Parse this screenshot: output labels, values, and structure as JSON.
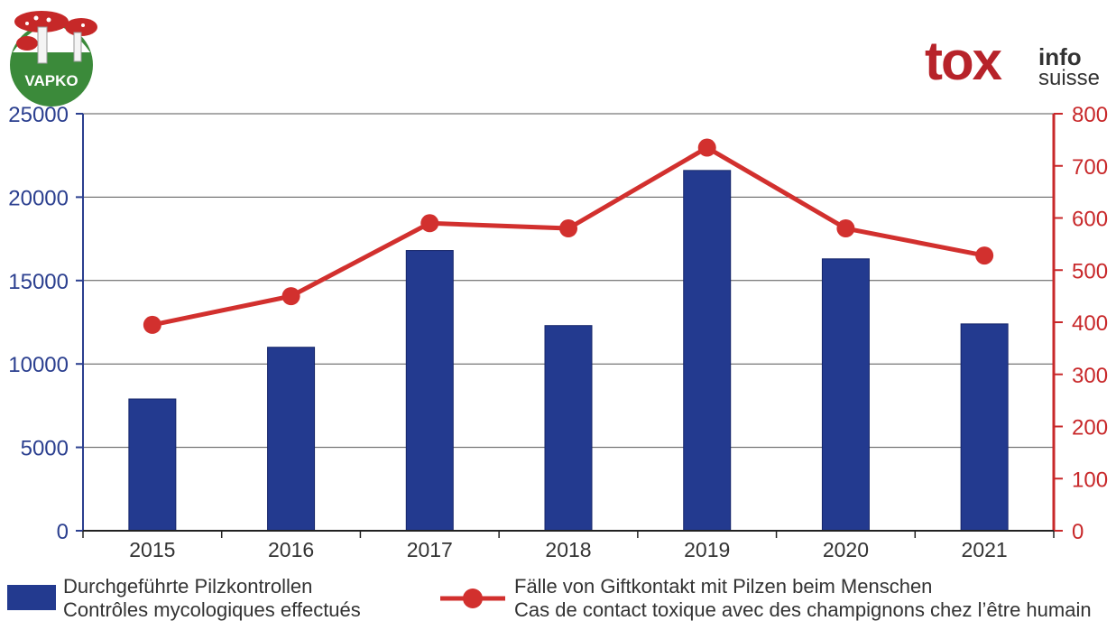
{
  "logos": {
    "left_text": "VAPKO",
    "right_big": "tox",
    "right_small_1": "info",
    "right_small_2": "suisse"
  },
  "colors": {
    "bar": "#233a8f",
    "line": "#d2302e",
    "left_axis": "#2b3f8f",
    "right_axis": "#c8282a"
  },
  "chart_data": {
    "type": "bar",
    "categories": [
      "2015",
      "2016",
      "2017",
      "2018",
      "2019",
      "2020",
      "2021"
    ],
    "series": [
      {
        "name": "Durchgeführte Pilzkontrollen",
        "name_fr": "Contrôles mycologiques effectués",
        "type": "bar",
        "axis": "left",
        "values": [
          7900,
          11000,
          16800,
          12300,
          21600,
          16300,
          12400
        ]
      },
      {
        "name": "Fälle von Giftkontakt mit Pilzen beim Menschen",
        "name_fr": "Cas de contact toxique avec des champignons chez l’être humain",
        "type": "line",
        "axis": "right",
        "values": [
          395,
          450,
          590,
          580,
          735,
          580,
          528
        ]
      }
    ],
    "y_left": {
      "ylim": [
        0,
        25000
      ],
      "ticks": [
        "0",
        "5000",
        "10000",
        "15000",
        "20000",
        "25000"
      ]
    },
    "y_right": {
      "ylim": [
        0,
        800
      ],
      "ticks": [
        "0",
        "100",
        "200",
        "300",
        "400",
        "500",
        "600",
        "700",
        "800"
      ]
    },
    "grid": true,
    "legend_placement": "bottom"
  }
}
